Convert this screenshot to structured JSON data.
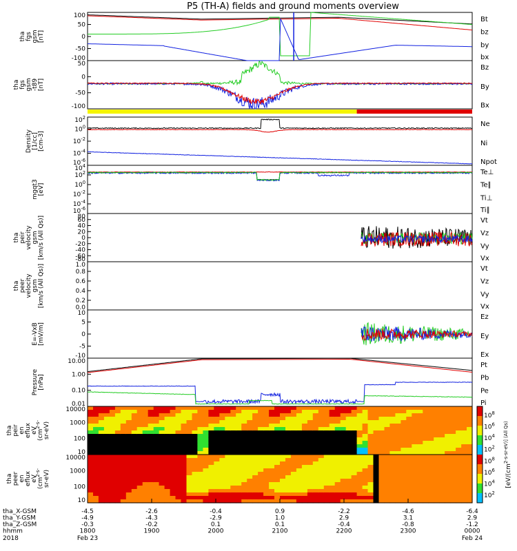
{
  "title": "P5 (TH-A) fields and ground moments overview",
  "colors": {
    "black": "#000000",
    "red": "#e00000",
    "green": "#22cc22",
    "blue": "#1020e0",
    "yellow": "#f5f500",
    "cyan": "#00b0d0"
  },
  "chart_data": [
    {
      "type": "line",
      "panel": "fgs",
      "ylabel": [
        "tha",
        "fgs",
        "gsm",
        "[nT]"
      ],
      "yticks": [
        "100",
        "50",
        "0",
        "-50",
        "-100"
      ],
      "legend": [
        {
          "name": "Bt",
          "color": "black"
        },
        {
          "name": "bz",
          "color": "red"
        },
        {
          "name": "by",
          "color": "green"
        },
        {
          "name": "bx",
          "color": "blue"
        }
      ]
    },
    {
      "type": "line",
      "panel": "fgs-t89",
      "ylabel": [
        "tha",
        "fgs",
        "gsm",
        "-t89",
        "[nT]"
      ],
      "yticks": [
        "50",
        "0",
        "-50",
        "-100"
      ],
      "legend": [
        {
          "name": "Bz",
          "color": "red"
        },
        {
          "name": "By",
          "color": "green"
        },
        {
          "name": "Bx",
          "color": "blue"
        }
      ]
    },
    {
      "type": "line",
      "panel": "density",
      "ylabel": [
        "Density",
        "[1/cc]",
        "[cm-3]"
      ],
      "yticks": [
        "10^2",
        "10^0",
        "10^-2",
        "10^-4",
        "10^-6"
      ],
      "legend": [
        {
          "name": "Ne",
          "color": "red"
        },
        {
          "name": "Ni",
          "color": "black"
        },
        {
          "name": "Npot",
          "color": "blue"
        }
      ]
    },
    {
      "type": "line",
      "panel": "temperature",
      "ylabel": [
        "mgqt3",
        "[eV]"
      ],
      "yticks": [
        "10^4",
        "10^2",
        "10^0",
        "10^-2",
        "10^-4",
        "10^-6"
      ],
      "legend": [
        {
          "name": "Te⊥",
          "color": "red"
        },
        {
          "name": "Te∥",
          "color": "black"
        },
        {
          "name": "Ti⊥",
          "color": "green"
        },
        {
          "name": "Ti∥",
          "color": "green"
        }
      ]
    },
    {
      "type": "line",
      "panel": "peir-velocity",
      "ylabel": [
        "tha",
        "peir",
        "velocity",
        "gsm",
        "[km/s (All Qs)]"
      ],
      "yticks": [
        "80",
        "60",
        "40",
        "20",
        "0",
        "-20",
        "-40",
        "-60",
        "-80"
      ],
      "legend": [
        {
          "name": "Vt",
          "color": "black"
        },
        {
          "name": "Vz",
          "color": "red"
        },
        {
          "name": "Vy",
          "color": "green"
        },
        {
          "name": "Vx",
          "color": "blue"
        }
      ]
    },
    {
      "type": "line",
      "panel": "peer-velocity",
      "ylabel": [
        "tha",
        "peer",
        "velocity",
        "gsm",
        "[km/s (All Qs)]"
      ],
      "yticks": [
        "1.0",
        "0.8",
        "0.6",
        "0.4",
        "0.2",
        "0.0"
      ],
      "legend": [
        {
          "name": "Vt",
          "color": "black"
        },
        {
          "name": "Vz",
          "color": "red"
        },
        {
          "name": "Vy",
          "color": "green"
        },
        {
          "name": "Vx",
          "color": "blue"
        }
      ]
    },
    {
      "type": "line",
      "panel": "efield",
      "ylabel": [
        "E=-VxB",
        "[mV/m]"
      ],
      "yticks": [
        "10",
        "5",
        "0",
        "-5",
        "-10"
      ],
      "legend": [
        {
          "name": "Ez",
          "color": "red"
        },
        {
          "name": "Ey",
          "color": "green"
        },
        {
          "name": "Ex",
          "color": "blue"
        }
      ]
    },
    {
      "type": "line",
      "panel": "pressure",
      "ylabel": [
        "Pressure",
        "[nPa]"
      ],
      "yticks": [
        "10.00",
        "1.00",
        "0.10",
        "0.01"
      ],
      "legend": [
        {
          "name": "Pt",
          "color": "black"
        },
        {
          "name": "Pb",
          "color": "red"
        },
        {
          "name": "Pe",
          "color": "green"
        },
        {
          "name": "Pi",
          "color": "blue"
        }
      ]
    },
    {
      "type": "heatmap",
      "panel": "peir-spectrogram",
      "ylabel": [
        "tha",
        "peir",
        "en",
        "eflux",
        "eV",
        "(cm^2-s-",
        "sr-eV)"
      ],
      "yticks": [
        "10000",
        "1000",
        "100",
        "10"
      ]
    },
    {
      "type": "heatmap",
      "panel": "peer-spectrogram",
      "ylabel": [
        "tha",
        "peer",
        "en",
        "eflux",
        "eV",
        "(cm^2-s-",
        "sr-eV)"
      ],
      "yticks": [
        "10000",
        "1000",
        "100",
        "10"
      ],
      "colorbar": {
        "label": "[eV/(cm^2-s-sr-eV)] (All Qs)",
        "ticks": [
          "10^8",
          "10^6",
          "10^4",
          "10^2",
          "10^8",
          "10^6",
          "10^4",
          "10^2"
        ]
      }
    }
  ],
  "x_axis": {
    "rows": [
      {
        "label": "tha_X-GSM",
        "values": [
          "-4.5",
          "-2.6",
          "-0.4",
          "0.9",
          "-2.2",
          "-4.6",
          "-6.4"
        ]
      },
      {
        "label": "tha_Y-GSM",
        "values": [
          "-4.9",
          "-4.3",
          "-2.9",
          "1.0",
          "2.9",
          "3.1",
          "2.9"
        ]
      },
      {
        "label": "tha_Z-GSM",
        "values": [
          "-0.3",
          "-0.2",
          "0.1",
          "0.1",
          "-0.4",
          "-0.8",
          "-1.2"
        ]
      },
      {
        "label": "hhmm",
        "values": [
          "1800",
          "1900",
          "2000",
          "2100",
          "2200",
          "2300",
          "0000"
        ]
      }
    ],
    "year": "2018",
    "dates": [
      {
        "text": "Feb 23"
      },
      {
        "text": "Feb 24"
      }
    ]
  }
}
